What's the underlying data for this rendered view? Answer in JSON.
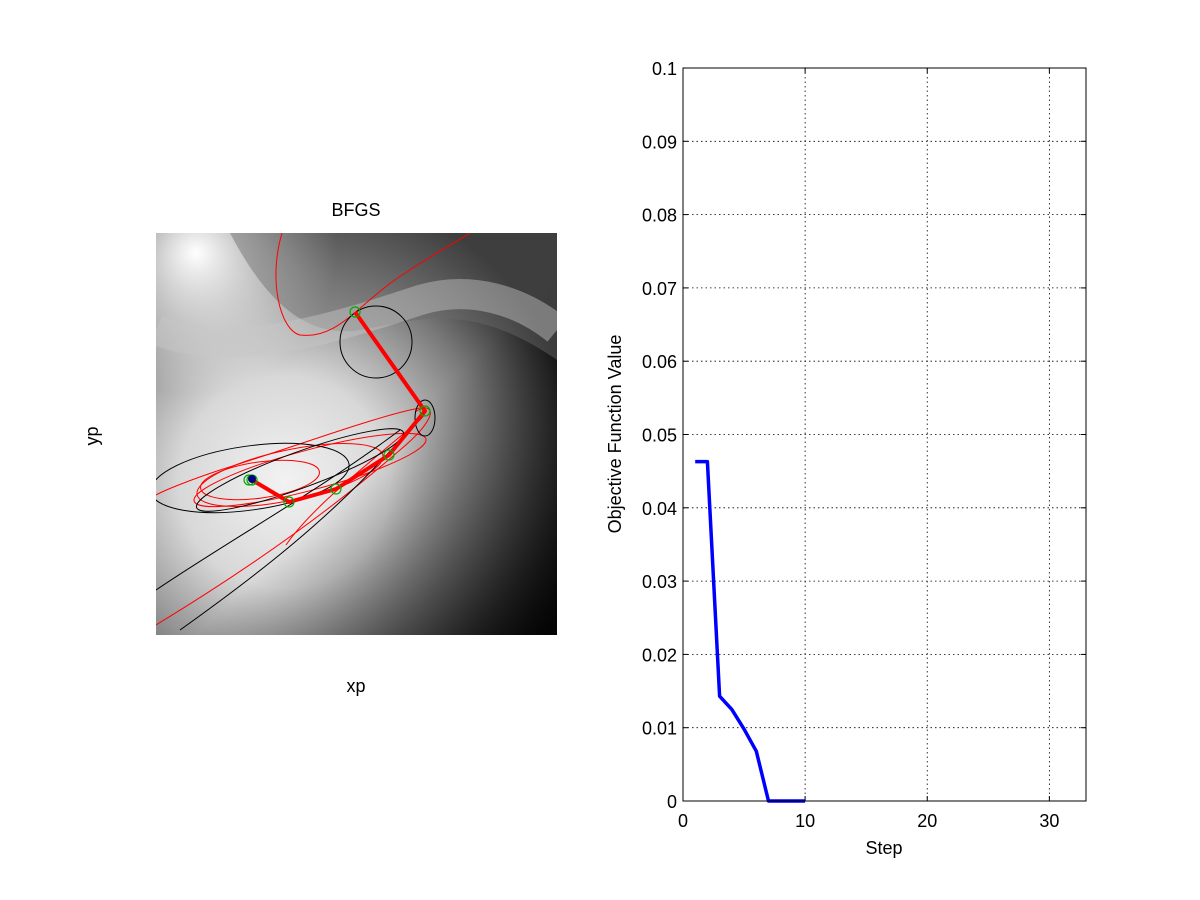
{
  "chart_data": [
    {
      "type": "contour",
      "title": "BFGS",
      "xlabel": "xp",
      "ylabel": "yp",
      "colormap": "gray",
      "contour_line_colors": [
        "#ff0000",
        "#000000"
      ],
      "path_color": "#ff0000",
      "marker_color": "#00aa00"
    },
    {
      "type": "line",
      "title": "",
      "xlabel": "Step",
      "ylabel": "Objective Function Value",
      "xlim": [
        0,
        33
      ],
      "ylim": [
        0,
        0.1
      ],
      "xticks": [
        0,
        10,
        20,
        30
      ],
      "yticks": [
        0,
        0.01,
        0.02,
        0.03,
        0.04,
        0.05,
        0.06,
        0.07,
        0.08,
        0.09,
        0.1
      ],
      "xtick_labels": [
        "0",
        "10",
        "20",
        "30"
      ],
      "ytick_labels": [
        "0",
        "0.01",
        "0.02",
        "0.03",
        "0.04",
        "0.05",
        "0.06",
        "0.07",
        "0.08",
        "0.09",
        "0.1"
      ],
      "grid": true,
      "series": [
        {
          "color": "#0000ff",
          "x": [
            1,
            2,
            3,
            4,
            5,
            6,
            7,
            8,
            9,
            10
          ],
          "y": [
            0.0463,
            0.0463,
            0.0143,
            0.0125,
            0.0098,
            0.0068,
            0.0,
            0.0,
            0.0,
            0.0
          ]
        }
      ]
    }
  ]
}
